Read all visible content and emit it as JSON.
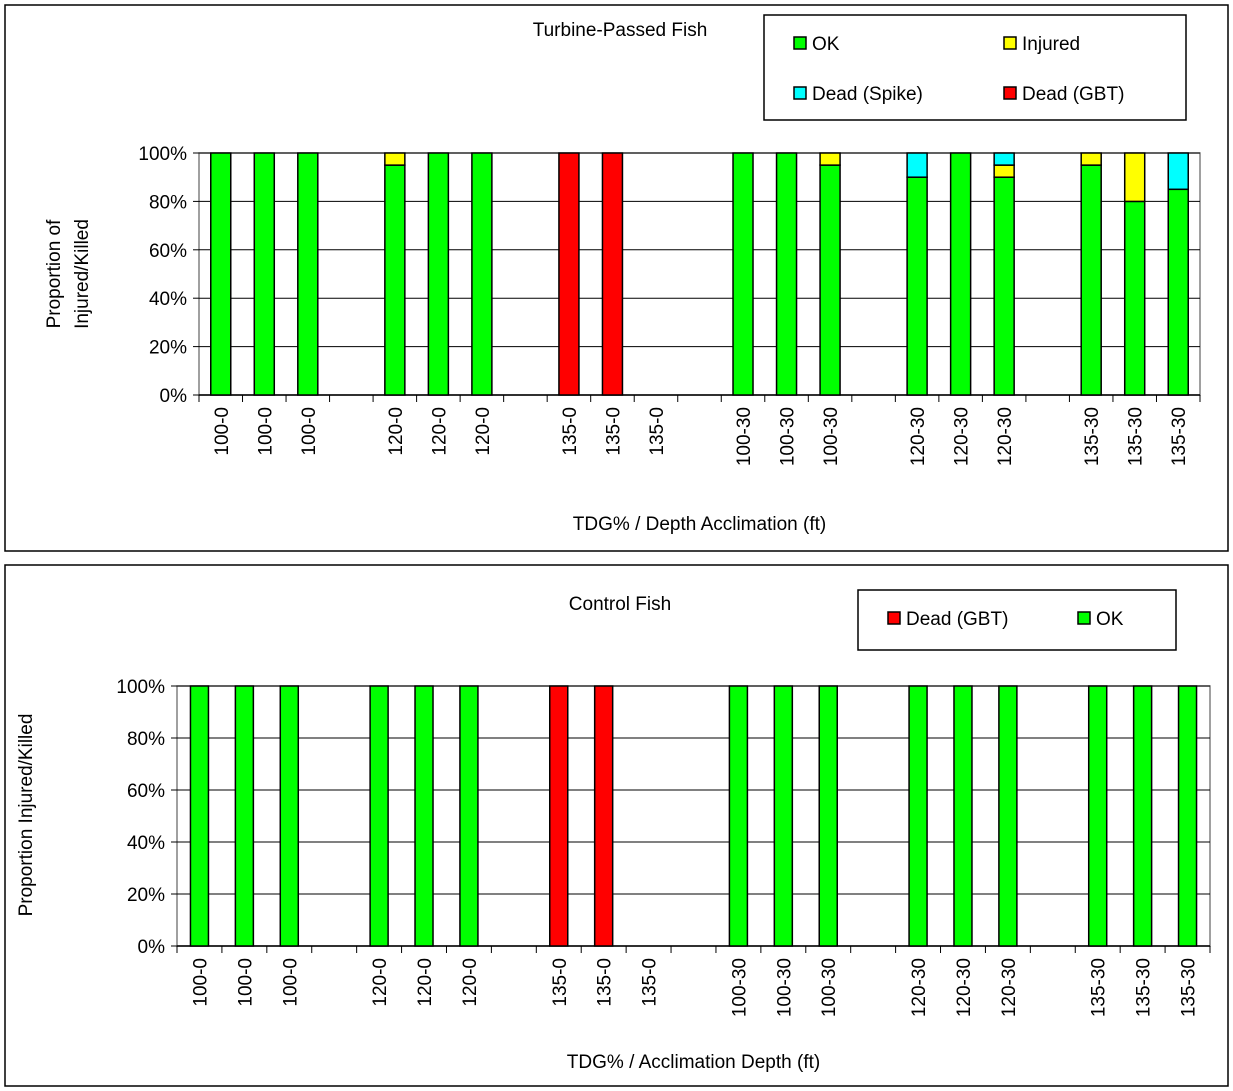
{
  "chart_data": [
    {
      "type": "stacked_bar",
      "title": "Turbine-Passed Fish",
      "xlabel": "TDG% / Depth Acclimation (ft)",
      "ylabel": [
        "Proportion of",
        "Injured/Killed"
      ],
      "categories": [
        "100-0",
        "100-0",
        "100-0",
        null,
        "120-0",
        "120-0",
        "120-0",
        null,
        "135-0",
        "135-0",
        "135-0",
        null,
        "100-30",
        "100-30",
        "100-30",
        null,
        "120-30",
        "120-30",
        "120-30",
        null,
        "135-30",
        "135-30",
        "135-30"
      ],
      "series": [
        {
          "name": "OK",
          "color": "#00ff00",
          "values": [
            100,
            100,
            100,
            null,
            95,
            100,
            100,
            null,
            0,
            0,
            0,
            null,
            100,
            100,
            95,
            null,
            90,
            100,
            90,
            null,
            95,
            80,
            85
          ]
        },
        {
          "name": "Injured",
          "color": "#ffff00",
          "values": [
            0,
            0,
            0,
            null,
            5,
            0,
            0,
            null,
            0,
            0,
            0,
            null,
            0,
            0,
            5,
            null,
            0,
            0,
            5,
            null,
            5,
            20,
            0
          ]
        },
        {
          "name": "Dead (Spike)",
          "color": "#00ffff",
          "values": [
            0,
            0,
            0,
            null,
            0,
            0,
            0,
            null,
            0,
            0,
            0,
            null,
            0,
            0,
            0,
            null,
            10,
            0,
            5,
            null,
            0,
            0,
            15
          ]
        },
        {
          "name": "Dead (GBT)",
          "color": "#ff0000",
          "values": [
            0,
            0,
            0,
            null,
            0,
            0,
            0,
            null,
            100,
            100,
            0,
            null,
            0,
            0,
            0,
            null,
            0,
            0,
            0,
            null,
            0,
            0,
            0
          ]
        }
      ],
      "ylim": [
        0,
        100
      ],
      "yticks": [
        {
          "value": 0,
          "label": "0%"
        },
        {
          "value": 20,
          "label": "20%"
        },
        {
          "value": 40,
          "label": "40%"
        },
        {
          "value": 60,
          "label": "60%"
        },
        {
          "value": 80,
          "label": "80%"
        },
        {
          "value": 100,
          "label": "100%"
        }
      ],
      "grid": true
    },
    {
      "type": "stacked_bar",
      "title": "Control Fish",
      "xlabel": "TDG% / Acclimation Depth (ft)",
      "ylabel": "Proportion Injured/Killed",
      "categories": [
        "100-0",
        "100-0",
        "100-0",
        null,
        "120-0",
        "120-0",
        "120-0",
        null,
        "135-0",
        "135-0",
        "135-0",
        null,
        "100-30",
        "100-30",
        "100-30",
        null,
        "120-30",
        "120-30",
        "120-30",
        null,
        "135-30",
        "135-30",
        "135-30"
      ],
      "series": [
        {
          "name": "Dead (GBT)",
          "color": "#ff0000",
          "values": [
            0,
            0,
            0,
            null,
            0,
            0,
            0,
            null,
            100,
            100,
            0,
            null,
            0,
            0,
            0,
            null,
            0,
            0,
            0,
            null,
            0,
            0,
            0
          ]
        },
        {
          "name": "OK",
          "color": "#00ff00",
          "values": [
            100,
            100,
            100,
            null,
            100,
            100,
            100,
            null,
            0,
            0,
            0,
            null,
            100,
            100,
            100,
            null,
            100,
            100,
            100,
            null,
            100,
            100,
            100
          ]
        }
      ],
      "ylim": [
        0,
        100
      ],
      "yticks": [
        {
          "value": 0,
          "label": "0%"
        },
        {
          "value": 20,
          "label": "20%"
        },
        {
          "value": 40,
          "label": "40%"
        },
        {
          "value": 60,
          "label": "60%"
        },
        {
          "value": 80,
          "label": "80%"
        },
        {
          "value": 100,
          "label": "100%"
        }
      ],
      "grid": true
    }
  ]
}
